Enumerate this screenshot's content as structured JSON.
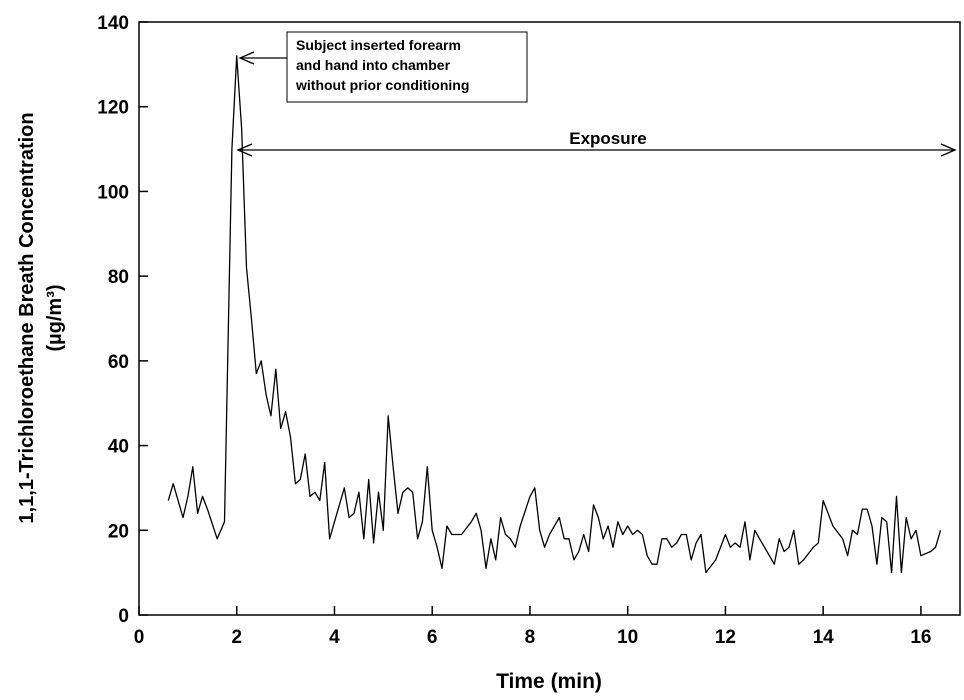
{
  "chart_data": {
    "type": "line",
    "xlabel": "Time (min)",
    "ylabel": [
      "1,1,1-Trichloroethane Breath Concentration",
      "(µg/m³)"
    ],
    "annotations": [
      "Subject inserted forearm",
      "and hand into chamber",
      "without prior conditioning",
      "Exposure"
    ],
    "color": "#000000",
    "xlim": [
      0,
      16.8
    ],
    "xticks": [
      0,
      2,
      4,
      6,
      8,
      10,
      12,
      14,
      16
    ],
    "ylim": [
      0,
      140
    ],
    "yticks": [
      0,
      20,
      40,
      60,
      80,
      100,
      120,
      140
    ],
    "x": [
      0.6,
      0.7,
      0.8,
      0.9,
      1.0,
      1.1,
      1.2,
      1.3,
      1.4,
      1.6,
      1.75,
      1.9,
      2.0,
      2.1,
      2.2,
      2.3,
      2.4,
      2.5,
      2.6,
      2.7,
      2.8,
      2.9,
      3.0,
      3.1,
      3.2,
      3.3,
      3.4,
      3.5,
      3.6,
      3.7,
      3.8,
      3.9,
      4.0,
      4.2,
      4.3,
      4.4,
      4.5,
      4.6,
      4.7,
      4.8,
      4.9,
      5.0,
      5.1,
      5.2,
      5.3,
      5.4,
      5.5,
      5.6,
      5.7,
      5.8,
      5.9,
      6.0,
      6.1,
      6.2,
      6.3,
      6.4,
      6.6,
      6.8,
      6.9,
      7.0,
      7.1,
      7.2,
      7.3,
      7.4,
      7.5,
      7.6,
      7.7,
      7.8,
      8.0,
      8.1,
      8.2,
      8.3,
      8.4,
      8.6,
      8.7,
      8.8,
      8.9,
      9.0,
      9.1,
      9.2,
      9.3,
      9.4,
      9.5,
      9.6,
      9.7,
      9.8,
      9.9,
      10.0,
      10.1,
      10.2,
      10.3,
      10.4,
      10.5,
      10.6,
      10.7,
      10.8,
      10.9,
      11.0,
      11.1,
      11.2,
      11.3,
      11.4,
      11.5,
      11.6,
      11.8,
      12.0,
      12.1,
      12.2,
      12.3,
      12.4,
      12.5,
      12.6,
      12.7,
      12.8,
      12.9,
      13.0,
      13.1,
      13.2,
      13.3,
      13.4,
      13.5,
      13.6,
      13.8,
      13.9,
      14.0,
      14.1,
      14.2,
      14.4,
      14.5,
      14.6,
      14.7,
      14.8,
      14.9,
      15.0,
      15.1,
      15.2,
      15.3,
      15.4,
      15.5,
      15.6,
      15.7,
      15.8,
      15.9,
      16.0,
      16.2,
      16.3,
      16.4
    ],
    "values": [
      27,
      31,
      27,
      23,
      28,
      35,
      24,
      28,
      25,
      18,
      22,
      110,
      132,
      115,
      82,
      70,
      57,
      60,
      52,
      47,
      58,
      44,
      48,
      42,
      31,
      32,
      38,
      28,
      29,
      27,
      36,
      18,
      22,
      30,
      23,
      24,
      29,
      18,
      32,
      17,
      29,
      20,
      47,
      35,
      24,
      29,
      30,
      29,
      18,
      22,
      35,
      20,
      16,
      11,
      21,
      19,
      19,
      22,
      24,
      20,
      11,
      18,
      13,
      23,
      19,
      18,
      16,
      21,
      28,
      30,
      20,
      16,
      19,
      23,
      18,
      18,
      13,
      15,
      19,
      15,
      26,
      23,
      18,
      21,
      16,
      22,
      19,
      21,
      19,
      20,
      19,
      14,
      12,
      12,
      18,
      18,
      16,
      17,
      19,
      19,
      13,
      17,
      19,
      10,
      13,
      19,
      16,
      17,
      16,
      22,
      13,
      20,
      18,
      16,
      14,
      12,
      18,
      15,
      16,
      20,
      12,
      13,
      16,
      17,
      27,
      24,
      21,
      18,
      14,
      20,
      19,
      25,
      25,
      21,
      12,
      23,
      22,
      10,
      28,
      10,
      23,
      18,
      20,
      14,
      15,
      16,
      20
    ]
  }
}
